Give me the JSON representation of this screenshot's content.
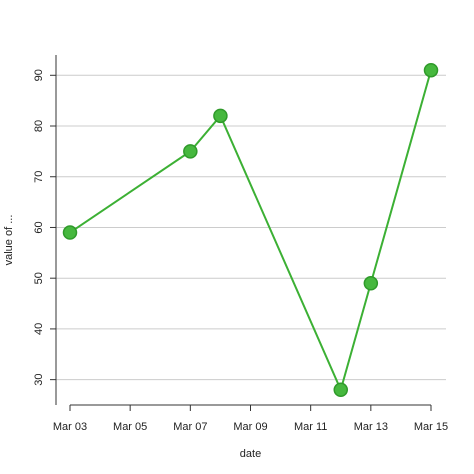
{
  "chart_data": {
    "type": "line",
    "xlabel": "date",
    "ylabel": "value of ...",
    "x_ticks": [
      "Mar 03",
      "Mar 05",
      "Mar 07",
      "Mar 09",
      "Mar 11",
      "Mar 13",
      "Mar 15"
    ],
    "y_ticks": [
      30,
      40,
      50,
      60,
      70,
      80,
      90
    ],
    "xlim": [
      "Mar 03",
      "Mar 15"
    ],
    "ylim": [
      25,
      94
    ],
    "grid": "horizontal",
    "legend": "none",
    "series": [
      {
        "x": [
          "Mar 03",
          "Mar 07",
          "Mar 08",
          "Mar 12",
          "Mar 13",
          "Mar 15"
        ],
        "values": [
          59,
          75,
          82,
          28,
          49,
          91
        ],
        "color": "#3cb034",
        "marker_color": "#46b83e",
        "marker_edge": "#2f9a2a"
      }
    ]
  }
}
